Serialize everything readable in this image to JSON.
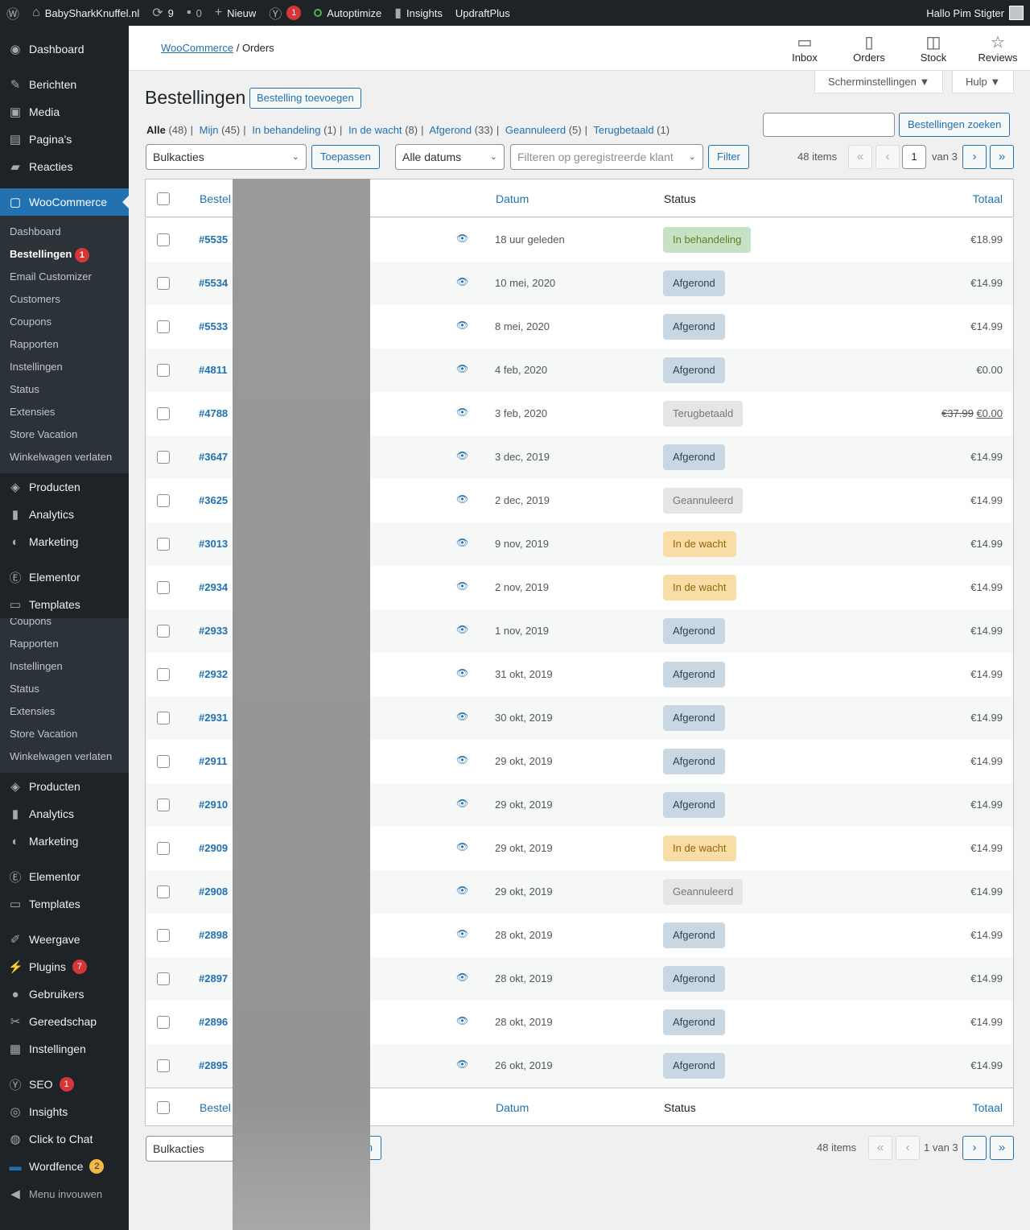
{
  "adminbar": {
    "site_name": "BabySharkKnuffel.nl",
    "updates_count": "9",
    "comments_count": "0",
    "new_label": "Nieuw",
    "yoast_badge": "1",
    "autoptimize": "Autoptimize",
    "insights": "Insights",
    "updraft": "UpdraftPlus",
    "greeting": "Hallo Pim Stigter"
  },
  "sidebar": {
    "top_items": [
      "Dashboard",
      "Berichten",
      "Media",
      "Pagina's",
      "Reacties"
    ],
    "woocommerce": "WooCommerce",
    "woo_sub": [
      "Dashboard",
      "Bestellingen",
      "Email Customizer",
      "Customers",
      "Coupons",
      "Rapporten",
      "Instellingen",
      "Status",
      "Extensies",
      "Store Vacation",
      "Winkelwagen verlaten"
    ],
    "woo_sub_badge": "1",
    "mid_items": [
      "Producten",
      "Analytics",
      "Marketing"
    ],
    "elementor_items": [
      "Elementor",
      "Templates"
    ],
    "dup_sub": [
      "Coupons",
      "Rapporten",
      "Instellingen",
      "Status",
      "Extensies",
      "Store Vacation",
      "Winkelwagen verlaten"
    ],
    "dup_mid": [
      "Producten",
      "Analytics",
      "Marketing"
    ],
    "dup_elementor": [
      "Elementor",
      "Templates"
    ],
    "lower_items": [
      "Weergave",
      "Plugins",
      "Gebruikers",
      "Gereedschap",
      "Instellingen"
    ],
    "plugins_badge": "7",
    "bottom_items": [
      "SEO",
      "Insights",
      "Click to Chat",
      "Wordfence"
    ],
    "seo_badge": "1",
    "wordfence_badge": "2",
    "collapse": "Menu invouwen"
  },
  "wcbar": {
    "breadcrumb_link": "WooCommerce",
    "breadcrumb_sep": "/",
    "breadcrumb_current": "Orders",
    "items": [
      "Inbox",
      "Orders",
      "Stock",
      "Reviews"
    ]
  },
  "screen_options": "Scherminstellingen ▼",
  "help": "Hulp ▼",
  "page_title": "Bestellingen",
  "add_order": "Bestelling toevoegen",
  "filters": [
    {
      "label": "Alle",
      "count": "(48)"
    },
    {
      "label": "Mijn",
      "count": "(45)"
    },
    {
      "label": "In behandeling",
      "count": "(1)"
    },
    {
      "label": "In de wacht",
      "count": "(8)"
    },
    {
      "label": "Afgerond",
      "count": "(33)"
    },
    {
      "label": "Geannuleerd",
      "count": "(5)"
    },
    {
      "label": "Terugbetaald",
      "count": "(1)"
    }
  ],
  "search_button": "Bestellingen zoeken",
  "bulk_actions": "Bulkacties",
  "apply": "Toepassen",
  "all_dates": "Alle datums",
  "customer_filter_placeholder": "Filteren op geregistreerde klant",
  "filter_button": "Filter",
  "items_count": "48 items",
  "page_current": "1",
  "page_of": "van 3",
  "page_of_bottom": "1 van 3",
  "columns": {
    "order": "Bestel",
    "date": "Datum",
    "status": "Status",
    "total": "Totaal"
  },
  "orders": [
    {
      "num": "#5535",
      "date": "18 uur geleden",
      "status": "In behandeling",
      "status_key": "processing",
      "total": "€18.99"
    },
    {
      "num": "#5534",
      "date": "10 mei, 2020",
      "status": "Afgerond",
      "status_key": "completed",
      "total": "€14.99"
    },
    {
      "num": "#5533",
      "date": "8 mei, 2020",
      "status": "Afgerond",
      "status_key": "completed",
      "total": "€14.99"
    },
    {
      "num": "#4811",
      "date": "4 feb, 2020",
      "status": "Afgerond",
      "status_key": "completed",
      "total": "€0.00"
    },
    {
      "num": "#4788",
      "date": "3 feb, 2020",
      "status": "Terugbetaald",
      "status_key": "refunded",
      "total": "€0.00",
      "total_old": "€37.99"
    },
    {
      "num": "#3647",
      "date": "3 dec, 2019",
      "status": "Afgerond",
      "status_key": "completed",
      "total": "€14.99"
    },
    {
      "num": "#3625",
      "date": "2 dec, 2019",
      "status": "Geannuleerd",
      "status_key": "cancelled",
      "total": "€14.99"
    },
    {
      "num": "#3013",
      "date": "9 nov, 2019",
      "status": "In de wacht",
      "status_key": "onhold",
      "total": "€14.99"
    },
    {
      "num": "#2934",
      "date": "2 nov, 2019",
      "status": "In de wacht",
      "status_key": "onhold",
      "total": "€14.99"
    },
    {
      "num": "#2933",
      "date": "1 nov, 2019",
      "status": "Afgerond",
      "status_key": "completed",
      "total": "€14.99"
    },
    {
      "num": "#2932",
      "date": "31 okt, 2019",
      "status": "Afgerond",
      "status_key": "completed",
      "total": "€14.99"
    },
    {
      "num": "#2931",
      "date": "30 okt, 2019",
      "status": "Afgerond",
      "status_key": "completed",
      "total": "€14.99"
    },
    {
      "num": "#2911",
      "date": "29 okt, 2019",
      "status": "Afgerond",
      "status_key": "completed",
      "total": "€14.99"
    },
    {
      "num": "#2910",
      "date": "29 okt, 2019",
      "status": "Afgerond",
      "status_key": "completed",
      "total": "€14.99"
    },
    {
      "num": "#2909",
      "date": "29 okt, 2019",
      "status": "In de wacht",
      "status_key": "onhold",
      "total": "€14.99"
    },
    {
      "num": "#2908",
      "date": "29 okt, 2019",
      "status": "Geannuleerd",
      "status_key": "cancelled",
      "total": "€14.99"
    },
    {
      "num": "#2898",
      "date": "28 okt, 2019",
      "status": "Afgerond",
      "status_key": "completed",
      "total": "€14.99"
    },
    {
      "num": "#2897",
      "date": "28 okt, 2019",
      "status": "Afgerond",
      "status_key": "completed",
      "total": "€14.99"
    },
    {
      "num": "#2896",
      "date": "28 okt, 2019",
      "status": "Afgerond",
      "status_key": "completed",
      "total": "€14.99"
    },
    {
      "num": "#2895",
      "date": "26 okt, 2019",
      "status": "Afgerond",
      "status_key": "completed",
      "total": "€14.99"
    }
  ],
  "bottom_apply_fragment": "n"
}
